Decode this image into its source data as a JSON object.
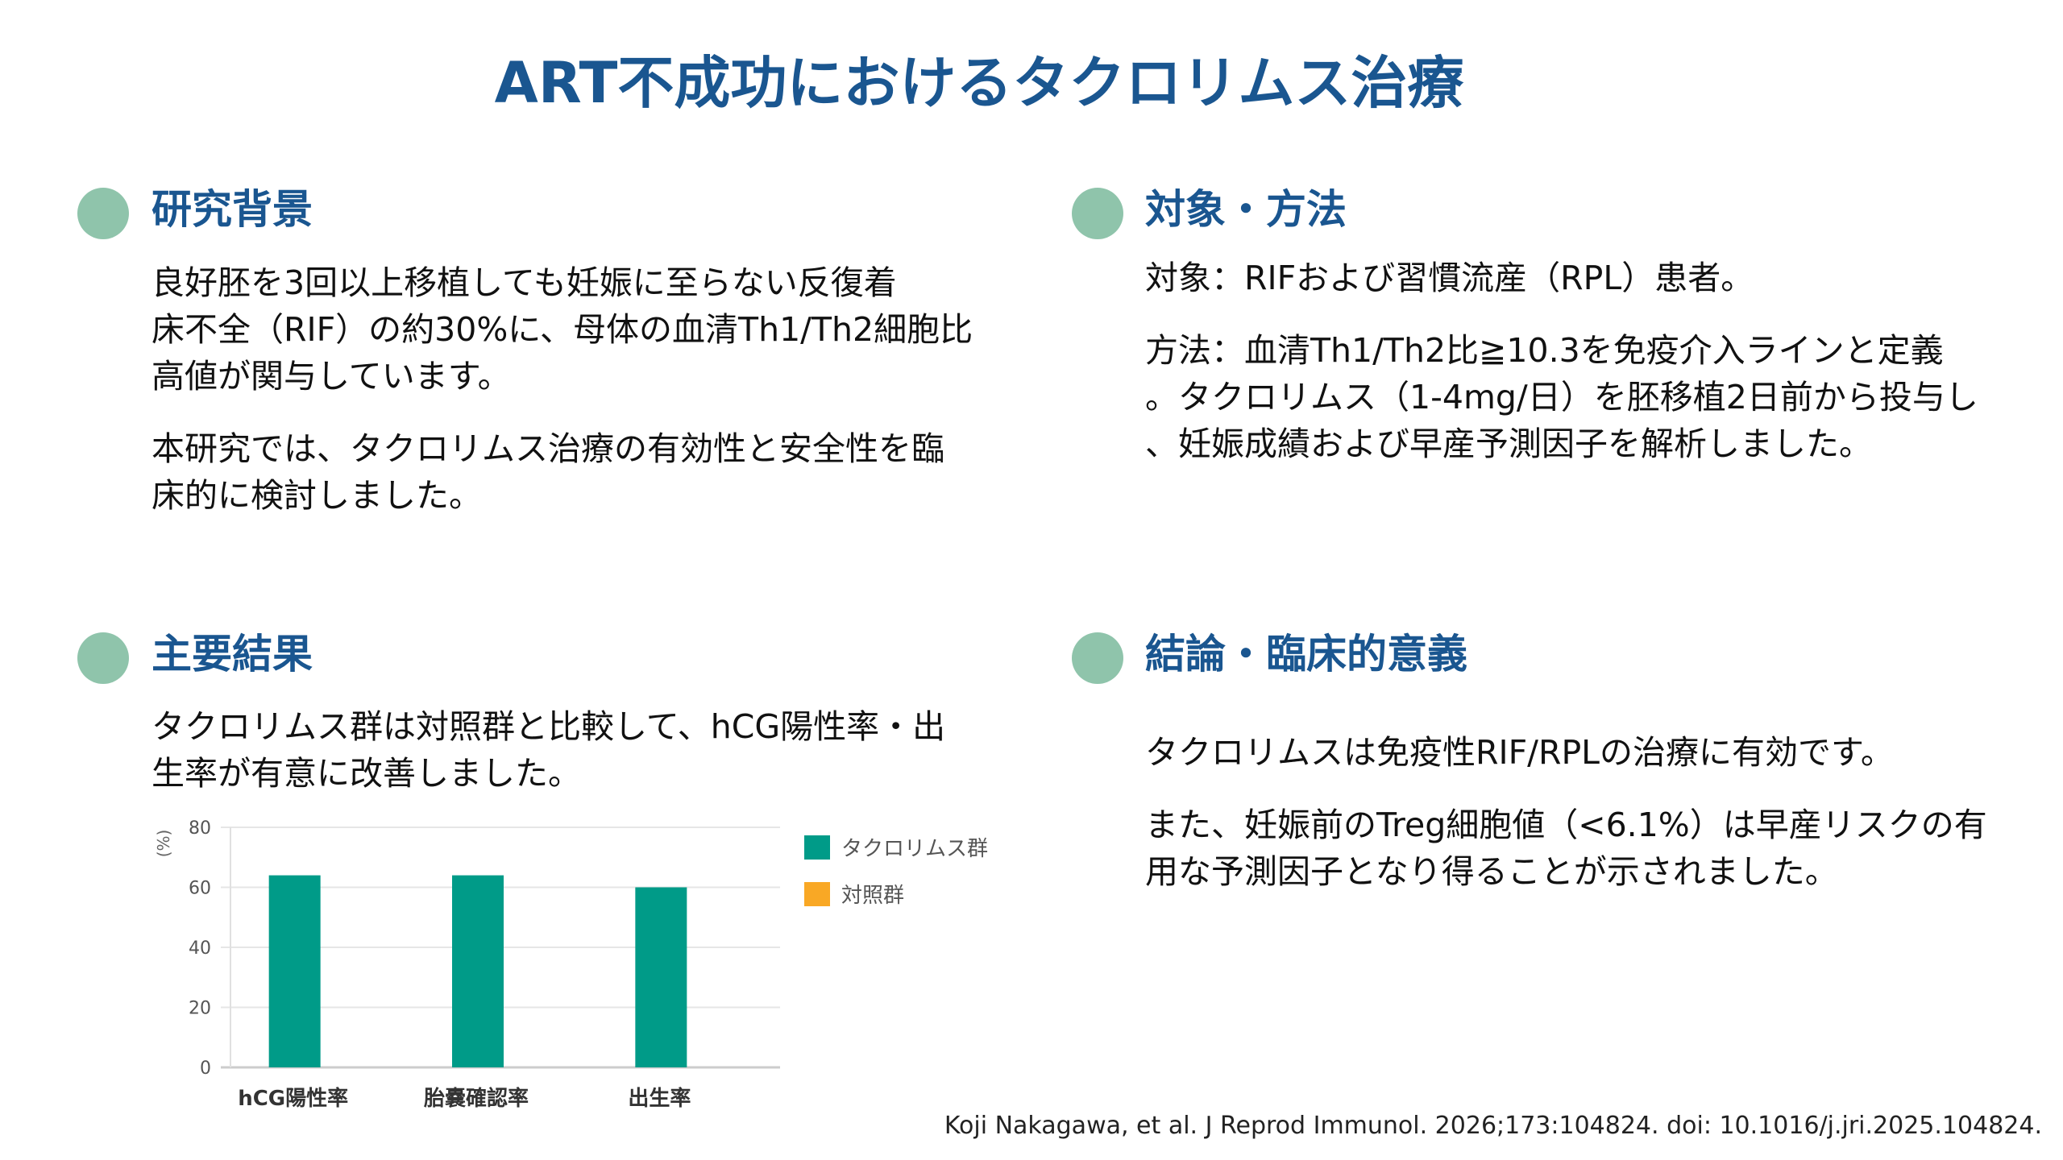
{
  "title": "ART不成功におけるタクロリムス治療",
  "sections": {
    "background": {
      "heading": "研究背景",
      "paragraphs": [
        [
          "良好胚を3回以上移植しても妊娠に至らない反復着",
          "床不全（RIF）の約30%に、母体の血清Th1/Th2細胞比",
          "高値が関与しています。"
        ],
        [
          "本研究では、タクロリムス治療の有効性と安全性を臨",
          "床的に検討しました。"
        ]
      ]
    },
    "methods": {
      "heading": "対象・方法",
      "paragraphs": [
        [
          "対象：RIFおよび習慣流産（RPL）患者。"
        ],
        [
          "方法：血清Th1/Th2比≧10.3を免疫介入ラインと定義",
          "。タクロリムス（1-4mg/日）を胚移植2日前から投与し",
          "、妊娠成績および早産予測因子を解析しました。"
        ]
      ]
    },
    "results": {
      "heading": "主要結果",
      "paragraphs": [
        [
          "タクロリムス群は対照群と比較して、hCG陽性率・出",
          "生率が有意に改善しました。"
        ]
      ]
    },
    "conclusion": {
      "heading": "結論・臨床的意義",
      "paragraphs": [
        [
          "タクロリムスは免疫性RIF/RPLの治療に有効です。"
        ],
        [
          "また、妊娠前のTreg細胞値（<6.1%）は早産リスクの有",
          "用な予測因子となり得ることが示されました。"
        ]
      ]
    }
  },
  "chart_data": {
    "type": "bar",
    "categories": [
      "hCG陽性率",
      "胎嚢確認率",
      "出生率"
    ],
    "series": [
      {
        "name": "タクロリムス群",
        "values": [
          64,
          64,
          60
        ],
        "color": "#009b88"
      },
      {
        "name": "対照群",
        "values": [
          null,
          null,
          null
        ],
        "color": "#f9a825"
      }
    ],
    "ylabel": "(%)",
    "ylim": [
      0,
      80
    ],
    "yticks": [
      0,
      20,
      40,
      60,
      80
    ],
    "grid": true,
    "legend": "right"
  },
  "footer": "Koji Nakagawa, et al. J Reprod Immunol. 2026;173:104824. doi: 10.1016/j.jri.2025.104824.",
  "colors": {
    "title": "#1a5690",
    "bullet": "#8fc4ab"
  }
}
